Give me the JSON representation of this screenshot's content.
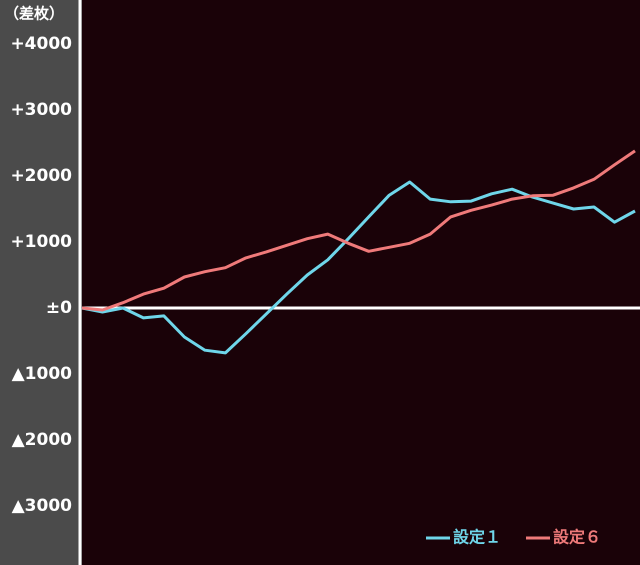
{
  "chart_data": {
    "type": "line",
    "y_unit_label": "（差枚）",
    "categories": [
      null,
      null,
      null,
      null,
      null,
      null,
      null,
      null,
      null,
      null,
      null,
      null,
      null,
      null,
      null,
      null,
      null,
      null,
      null,
      null,
      null,
      null,
      null,
      null,
      null,
      null,
      null,
      null
    ],
    "series": [
      {
        "name": "設定１",
        "color": "#6fd6ea",
        "values": [
          0,
          -60,
          0,
          -150,
          -120,
          -440,
          -640,
          -680,
          -390,
          -90,
          210,
          500,
          730,
          1050,
          1380,
          1710,
          1910,
          1650,
          1610,
          1620,
          1730,
          1800,
          1680,
          1590,
          1500,
          1530,
          1300,
          1470
        ]
      },
      {
        "name": "設定６",
        "color": "#ef7a7a",
        "values": [
          0,
          -30,
          80,
          210,
          300,
          470,
          550,
          610,
          760,
          850,
          950,
          1050,
          1120,
          980,
          860,
          920,
          980,
          1120,
          1380,
          1480,
          1560,
          1650,
          1700,
          1710,
          1820,
          1950,
          2170,
          2380
        ]
      }
    ],
    "ylim": [
      -3894,
      4667
    ],
    "yticks": [
      {
        "value": 4000,
        "label": "+4000"
      },
      {
        "value": 3000,
        "label": "+3000"
      },
      {
        "value": 2000,
        "label": "+2000"
      },
      {
        "value": 1000,
        "label": "+1000"
      },
      {
        "value": 0,
        "label": "±0"
      },
      {
        "value": -1000,
        "label": "▲1000"
      },
      {
        "value": -2000,
        "label": "▲2000"
      },
      {
        "value": -3000,
        "label": "▲3000"
      }
    ],
    "zero_line": true,
    "legend": "bottom-right"
  }
}
